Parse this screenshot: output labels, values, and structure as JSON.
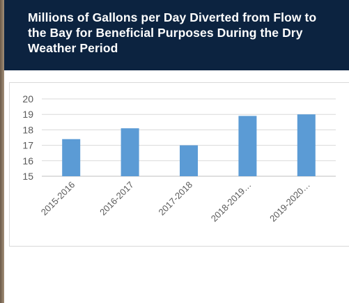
{
  "header": {
    "title": "Millions of Gallons per Day Diverted from Flow to the Bay for Beneficial Purposes During the Dry Weather Period"
  },
  "colors": {
    "header_bg": "#0c2340",
    "bar": "#5b9bd5"
  },
  "chart_data": {
    "type": "bar",
    "categories": [
      "2015-2016",
      "2016-2017",
      "2017-2018",
      "2018-2019…",
      "2019-2020…"
    ],
    "values": [
      17.4,
      18.1,
      17.0,
      18.9,
      19.0
    ],
    "yticks": [
      "15",
      "16",
      "17",
      "18",
      "19",
      "20"
    ],
    "ylim": [
      15,
      20
    ],
    "grid": true,
    "legend": "none"
  }
}
